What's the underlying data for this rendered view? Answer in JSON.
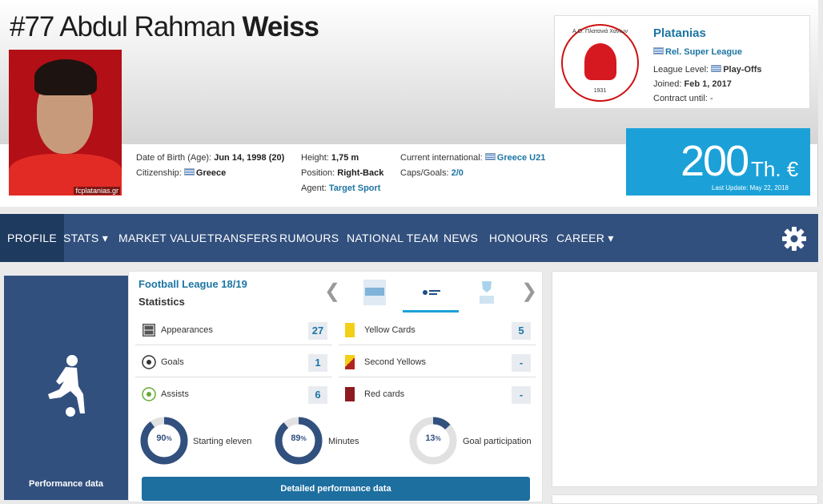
{
  "player": {
    "number": "#77",
    "first_names": "Abdul Rahman",
    "last_name": "Weiss",
    "photo_credit": "fcplatanias.gr",
    "dob_label": "Date of Birth (Age):",
    "dob_value": "Jun 14, 1998 (20)",
    "citizenship_label": "Citizenship:",
    "citizenship_value": "Greece",
    "height_label": "Height:",
    "height_value": "1,75 m",
    "position_label": "Position:",
    "position_value": "Right-Back",
    "agent_label": "Agent:",
    "agent_value": "Target Sport",
    "intl_label": "Current international:",
    "intl_value": "Greece U21",
    "caps_label": "Caps/Goals:",
    "caps_value": "2/0"
  },
  "club": {
    "name": "Platanias",
    "league": "Rel. Super League",
    "league_level_label": "League Level:",
    "league_level_value": "Play-Offs",
    "joined_label": "Joined:",
    "joined_value": "Feb 1, 2017",
    "contract_label": "Contract until:",
    "contract_value": "-",
    "logo_text": "Α.Ο. Πλατανιά Χανίων",
    "logo_year": "1931"
  },
  "market_value": {
    "value": "200",
    "unit": "Th. €",
    "last_update": "Last Update: May 22, 2018"
  },
  "nav": {
    "items": [
      "PROFILE",
      "STATS",
      "MARKET VALUE",
      "TRANSFERS",
      "RUMOURS",
      "NATIONAL TEAM",
      "NEWS",
      "HONOURS",
      "CAREER"
    ],
    "dropdown_marker": "▾"
  },
  "performance": {
    "side_label": "Performance data",
    "league_title": "Football League 18/19",
    "stats_title": "Statistics",
    "rows": [
      {
        "label": "Appearances",
        "value": "27"
      },
      {
        "label": "Goals",
        "value": "1"
      },
      {
        "label": "Assists",
        "value": "6"
      },
      {
        "label": "Yellow Cards",
        "value": "5"
      },
      {
        "label": "Second Yellows",
        "value": "-"
      },
      {
        "label": "Red cards",
        "value": "-"
      }
    ],
    "donuts": [
      {
        "pct": "90",
        "label": "Starting eleven",
        "fraction": 0.9
      },
      {
        "pct": "89",
        "label": "Minutes",
        "fraction": 0.89
      },
      {
        "pct": "13",
        "label": "Goal participation",
        "fraction": 0.13
      }
    ],
    "pct_sign": "%",
    "detail_button": "Detailed performance data"
  },
  "colors": {
    "nav_bg": "#32507e",
    "accent": "#1ba1d8",
    "link": "#1d75a3",
    "button": "#1d6fa0"
  }
}
